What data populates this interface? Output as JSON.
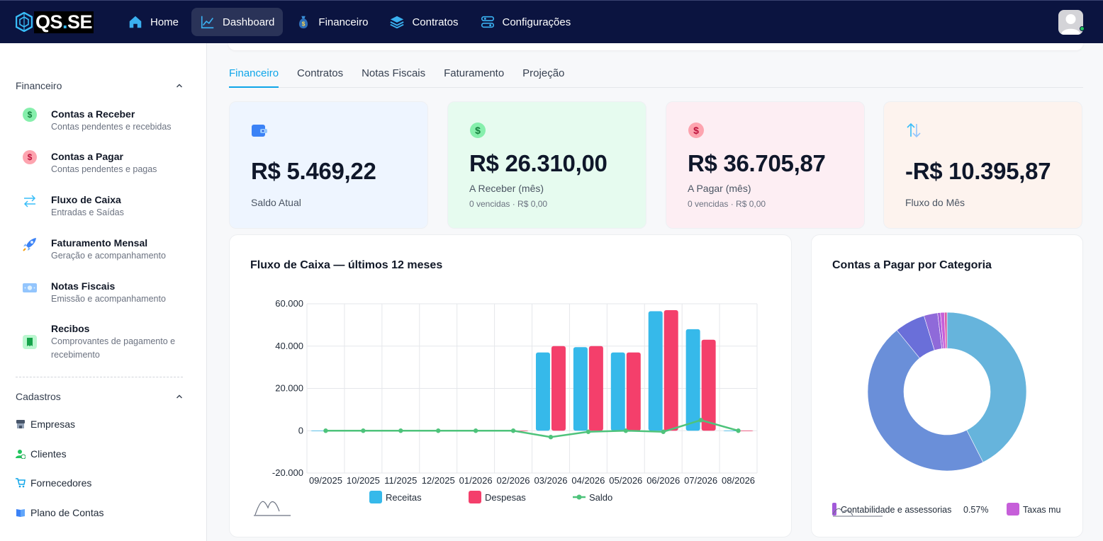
{
  "brand": {
    "name_a": "QS",
    "name_dot": ".",
    "name_b": "SE"
  },
  "nav": {
    "items": [
      {
        "label": "Home",
        "icon": "home-icon"
      },
      {
        "label": "Dashboard",
        "icon": "chart-line-icon"
      },
      {
        "label": "Financeiro",
        "icon": "money-bag-icon"
      },
      {
        "label": "Contratos",
        "icon": "layers-icon"
      },
      {
        "label": "Configurações",
        "icon": "sliders-icon"
      }
    ]
  },
  "sidebar": {
    "sections": [
      {
        "title": "Financeiro"
      },
      {
        "title": "Cadastros"
      }
    ],
    "items": [
      {
        "title": "Contas a Receber",
        "subtitle": "Contas pendentes e recebidas",
        "icon": "dollar-green-icon"
      },
      {
        "title": "Contas a Pagar",
        "subtitle": "Contas pendentes e pagas",
        "icon": "dollar-red-icon"
      },
      {
        "title": "Fluxo de Caixa",
        "subtitle": "Entradas e Saídas",
        "icon": "arrows-exchange-icon"
      },
      {
        "title": "Faturamento Mensal",
        "subtitle": "Geração e acompanhamento",
        "icon": "rocket-icon"
      },
      {
        "title": "Notas Fiscais",
        "subtitle": "Emissão e acompanhamento",
        "icon": "banknote-icon"
      },
      {
        "title": "Recibos",
        "subtitle_1": "Comprovantes de pagamento e",
        "subtitle_2": "recebimento",
        "icon": "receipt-icon"
      }
    ],
    "links": [
      {
        "label": "Empresas",
        "icon": "store-icon"
      },
      {
        "label": "Clientes",
        "icon": "user-check-icon"
      },
      {
        "label": "Fornecedores",
        "icon": "cart-icon"
      },
      {
        "label": "Plano de Contas",
        "icon": "book-icon"
      }
    ]
  },
  "tabs": [
    {
      "label": "Financeiro",
      "active": true
    },
    {
      "label": "Contratos"
    },
    {
      "label": "Notas Fiscais"
    },
    {
      "label": "Faturamento"
    },
    {
      "label": "Projeção"
    }
  ],
  "cards": [
    {
      "value": "R$ 5.469,22",
      "label": "Saldo Atual",
      "bg": "#eef5ff",
      "icon": "wallet-icon"
    },
    {
      "value": "R$ 26.310,00",
      "label": "A Receber (mês)",
      "note": "0 vencidas · R$ 0,00",
      "bg": "#e6fbef",
      "icon": "dollar-green-icon"
    },
    {
      "value": "R$ 36.705,87",
      "label": "A Pagar (mês)",
      "note": "0 vencidas · R$ 0,00",
      "bg": "#fdeef3",
      "icon": "dollar-red-icon"
    },
    {
      "value": "-R$ 10.395,87",
      "label": "Fluxo do Mês",
      "bg": "#fdf3ee",
      "icon": "arrows-updown-icon"
    }
  ],
  "cashflow": {
    "title": "Fluxo de Caixa — últimos 12 meses",
    "chart_data": {
      "type": "bar",
      "categories": [
        "09/2025",
        "10/2025",
        "11/2025",
        "12/2025",
        "01/2026",
        "02/2026",
        "03/2026",
        "04/2026",
        "05/2026",
        "06/2026",
        "07/2026",
        "08/2026"
      ],
      "series": [
        {
          "name": "Receitas",
          "type": "bar",
          "color": "#36b9ea",
          "values": [
            0,
            0,
            0,
            0,
            0,
            0,
            37000,
            39500,
            37000,
            56500,
            48000,
            0
          ]
        },
        {
          "name": "Despesas",
          "type": "bar",
          "color": "#f43f6b",
          "values": [
            0,
            0,
            0,
            0,
            0,
            0,
            40000,
            40000,
            37000,
            57000,
            43000,
            0
          ]
        },
        {
          "name": "Saldo",
          "type": "line",
          "color": "#4ec37b",
          "values": [
            0,
            0,
            0,
            0,
            0,
            0,
            -3000,
            -500,
            0,
            -500,
            5000,
            0
          ]
        }
      ],
      "yticks": [
        60000,
        40000,
        20000,
        0,
        -20000
      ],
      "ytick_labels": [
        "60.000",
        "40.000",
        "20.000",
        "0",
        "-20.000"
      ],
      "ylim": [
        -20000,
        60000
      ],
      "grid": true,
      "legend": "bottom"
    }
  },
  "categories": {
    "title": "Contas a Pagar por Categoria",
    "chart_data": {
      "type": "pie",
      "slices": [
        {
          "value": 42.5,
          "color": "#66b4dc"
        },
        {
          "value": 46.6,
          "color": "#6a8fd9"
        },
        {
          "value": 6.2,
          "color": "#6a6fd9"
        },
        {
          "value": 2.8,
          "color": "#8f6ad9"
        },
        {
          "value": 0.57,
          "color": "#a25ad9"
        },
        {
          "value": 0.8,
          "color": "#c65fd9"
        },
        {
          "value": 0.53,
          "color": "#d95fa8"
        }
      ],
      "legend_items": [
        {
          "label": "Contabilidade e assessorias",
          "pct": "0.57%",
          "color": "#a25ad9"
        },
        {
          "label": "Taxas mu",
          "color": "#c65fd9"
        }
      ],
      "legend": "bottom"
    }
  }
}
